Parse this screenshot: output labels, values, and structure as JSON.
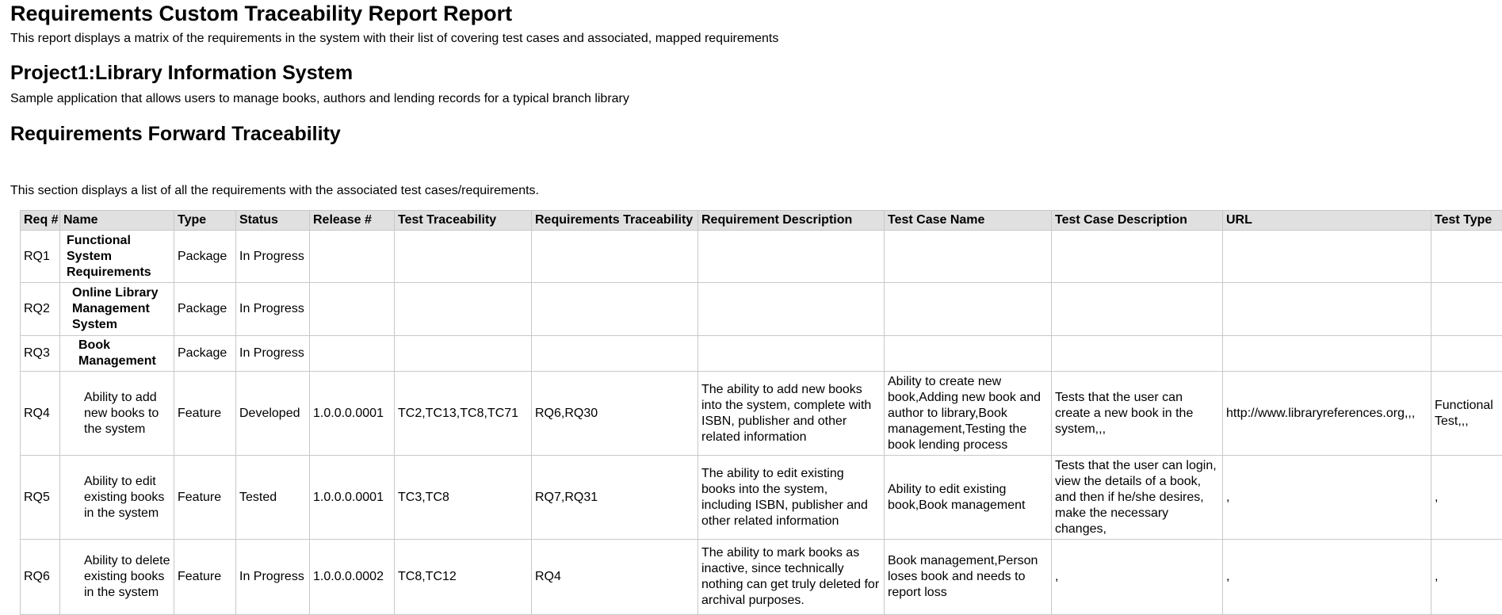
{
  "report": {
    "title": "Requirements Custom Traceability Report Report",
    "description": "This report displays a matrix of the requirements in the system with their list of covering test cases and associated, mapped requirements"
  },
  "project": {
    "title": "Project1:Library Information System",
    "description": "Sample application that allows users to manage books, authors and lending records for a typical branch library"
  },
  "section": {
    "title": "Requirements Forward Traceability",
    "description": "This section displays a list of all the requirements with the associated test cases/requirements."
  },
  "table": {
    "columns": [
      "Req #",
      "Name",
      "Type",
      "Status",
      "Release #",
      "Test Traceability",
      "Requirements  Traceability",
      "Requirement Description",
      "Test Case Name",
      "Test Case Description",
      "URL",
      "Test Type"
    ],
    "rows": [
      {
        "level": 0,
        "cells": [
          "RQ1",
          "Functional System Requirements",
          "Package",
          "In Progress",
          "",
          "",
          "",
          "",
          "",
          "",
          "",
          ""
        ]
      },
      {
        "level": 1,
        "cells": [
          "RQ2",
          "Online Library Management System",
          "Package",
          "In Progress",
          "",
          "",
          "",
          "",
          "",
          "",
          "",
          ""
        ]
      },
      {
        "level": 2,
        "cells": [
          "RQ3",
          "Book Management",
          "Package",
          "In Progress",
          "",
          "",
          "",
          "",
          "",
          "",
          "",
          ""
        ]
      },
      {
        "level": 3,
        "cells": [
          "RQ4",
          "Ability to add new books to the system",
          "Feature",
          "Developed",
          "1.0.0.0.0001",
          "TC2,TC13,TC8,TC71",
          "RQ6,RQ30",
          "The ability to add new books into the system, complete with ISBN, publisher and other related information",
          "Ability to create new book,Adding new book and author to library,Book management,Testing the book lending process",
          "Tests that the user can create a new book in the system,,,",
          "http://www.libraryreferences.org,,,",
          "Functional Test,,,"
        ]
      },
      {
        "level": 3,
        "cells": [
          "RQ5",
          "Ability to edit existing books in the system",
          "Feature",
          "Tested",
          "1.0.0.0.0001",
          "TC3,TC8",
          "RQ7,RQ31",
          "The ability to edit existing books into the system, including ISBN, publisher and other related information",
          "Ability to edit existing book,Book management",
          "Tests that the user can login, view the details of a book, and then if he/she desires, make the necessary changes,",
          ",",
          ","
        ]
      },
      {
        "level": 3,
        "cells": [
          "RQ6",
          "Ability to delete existing books in the system",
          "Feature",
          "In Progress",
          "1.0.0.0.0002",
          "TC8,TC12",
          "RQ4",
          "The ability to mark books as inactive, since technically nothing can get truly deleted for archival purposes.",
          "Book management,Person loses book and needs to report loss",
          ",",
          ",",
          ","
        ]
      }
    ]
  }
}
